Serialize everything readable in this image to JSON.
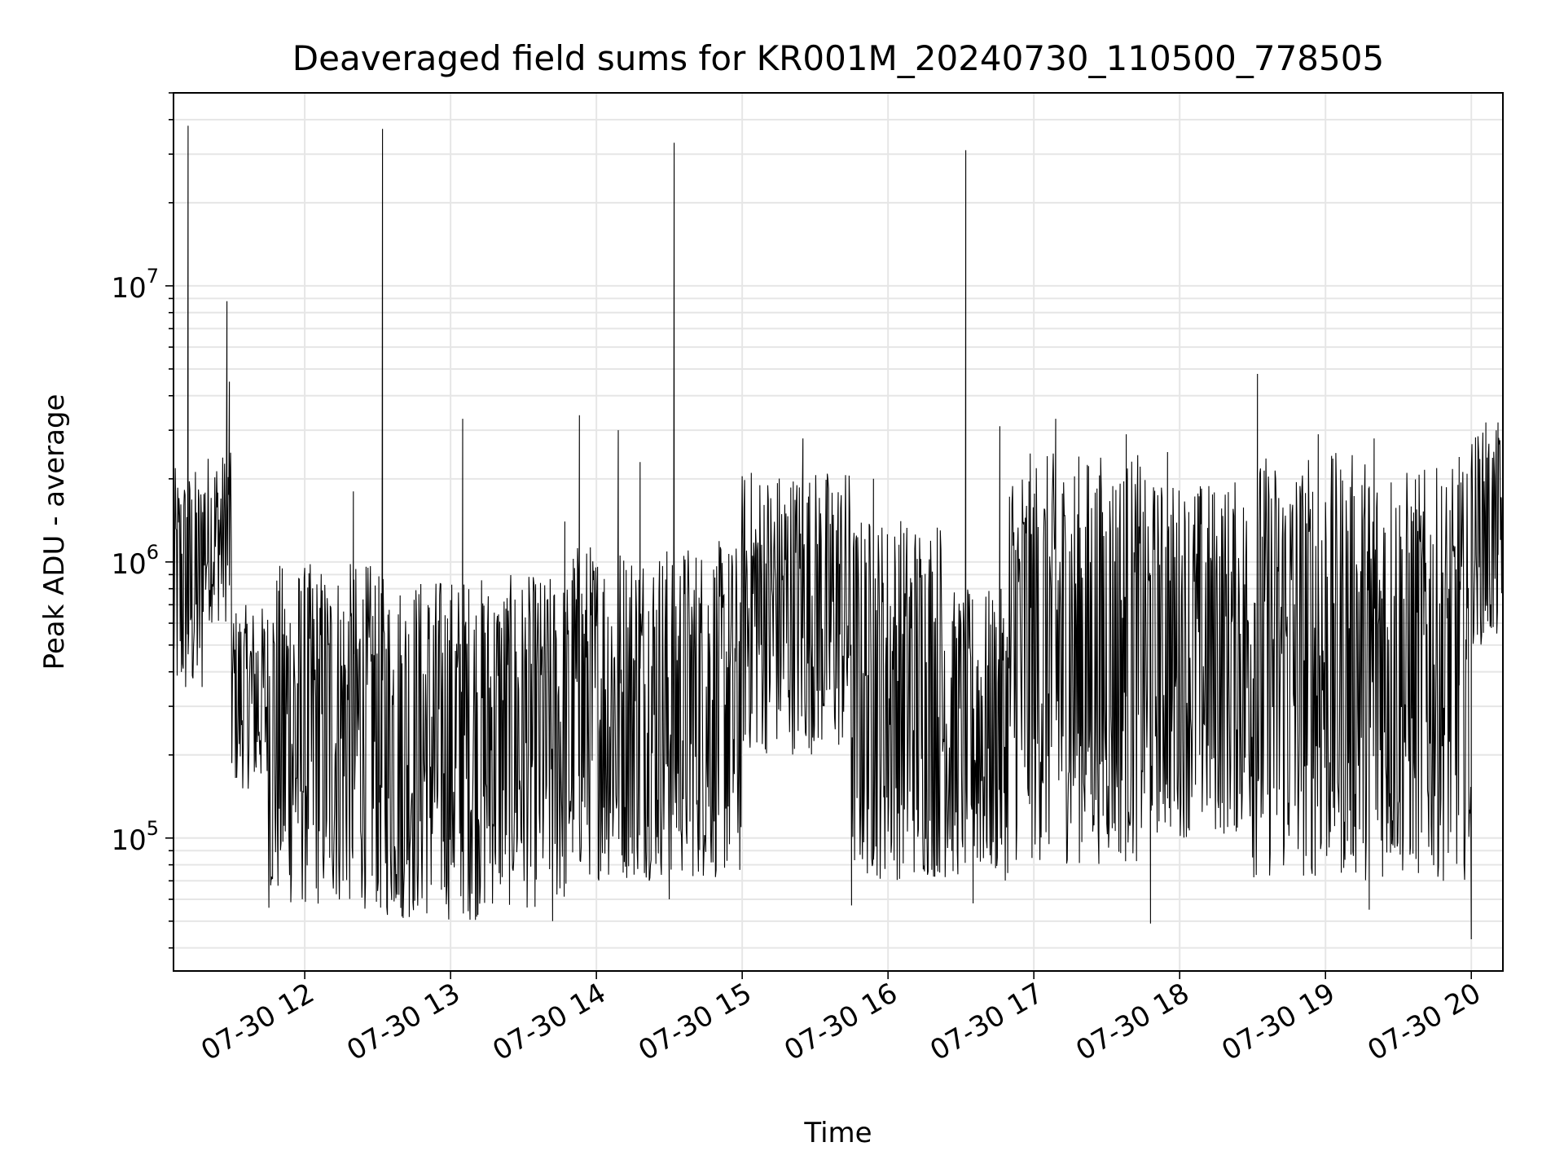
{
  "chart_data": {
    "type": "line",
    "title": "Deaveraged field sums for KR001M_20240730_110500_778505",
    "xlabel": "Time",
    "ylabel": "Peak ADU - average",
    "yscale": "log",
    "grid": true,
    "grid_minor": true,
    "xlim": [
      "2024-07-30 11:06",
      "2024-07-30 20:13"
    ],
    "ylim": [
      33000,
      50000000
    ],
    "x_ticks": [
      {
        "value": "2024-07-30 12:00",
        "label": "07-30 12"
      },
      {
        "value": "2024-07-30 13:00",
        "label": "07-30 13"
      },
      {
        "value": "2024-07-30 14:00",
        "label": "07-30 14"
      },
      {
        "value": "2024-07-30 15:00",
        "label": "07-30 15"
      },
      {
        "value": "2024-07-30 16:00",
        "label": "07-30 16"
      },
      {
        "value": "2024-07-30 17:00",
        "label": "07-30 17"
      },
      {
        "value": "2024-07-30 18:00",
        "label": "07-30 18"
      },
      {
        "value": "2024-07-30 19:00",
        "label": "07-30 19"
      },
      {
        "value": "2024-07-30 20:00",
        "label": "07-30 20"
      }
    ],
    "y_ticks": [
      {
        "value": 100000,
        "base": "10",
        "exp": "5"
      },
      {
        "value": 1000000,
        "base": "10",
        "exp": "6"
      },
      {
        "value": 10000000,
        "base": "10",
        "exp": "7"
      }
    ],
    "line_color": "#000000",
    "segments": [
      {
        "start": "2024-07-30 11:06",
        "end": "2024-07-30 11:18",
        "low": 300000,
        "high": 2200000
      },
      {
        "start": "2024-07-30 11:18",
        "end": "2024-07-30 11:30",
        "low": 600000,
        "high": 2500000
      },
      {
        "start": "2024-07-30 11:30",
        "end": "2024-07-30 11:45",
        "low": 150000,
        "high": 700000
      },
      {
        "start": "2024-07-30 11:45",
        "end": "2024-07-30 12:30",
        "low": 55000,
        "high": 1000000
      },
      {
        "start": "2024-07-30 12:30",
        "end": "2024-07-30 13:15",
        "low": 50000,
        "high": 900000
      },
      {
        "start": "2024-07-30 13:15",
        "end": "2024-07-30 13:50",
        "low": 55000,
        "high": 900000
      },
      {
        "start": "2024-07-30 13:50",
        "end": "2024-07-30 15:00",
        "low": 70000,
        "high": 1200000
      },
      {
        "start": "2024-07-30 15:00",
        "end": "2024-07-30 15:45",
        "low": 200000,
        "high": 2200000
      },
      {
        "start": "2024-07-30 15:45",
        "end": "2024-07-30 16:25",
        "low": 70000,
        "high": 1500000
      },
      {
        "start": "2024-07-30 16:25",
        "end": "2024-07-30 16:50",
        "low": 70000,
        "high": 800000
      },
      {
        "start": "2024-07-30 16:50",
        "end": "2024-07-30 17:45",
        "low": 80000,
        "high": 2500000
      },
      {
        "start": "2024-07-30 17:45",
        "end": "2024-07-30 18:30",
        "low": 100000,
        "high": 2000000
      },
      {
        "start": "2024-07-30 18:30",
        "end": "2024-07-30 19:30",
        "low": 70000,
        "high": 2500000
      },
      {
        "start": "2024-07-30 19:30",
        "end": "2024-07-30 20:00",
        "low": 70000,
        "high": 2200000
      },
      {
        "start": "2024-07-30 20:00",
        "end": "2024-07-30 20:13",
        "low": 500000,
        "high": 3000000
      }
    ],
    "spikes": [
      {
        "x": "2024-07-30 11:12",
        "y": 38000000
      },
      {
        "x": "2024-07-30 11:28",
        "y": 8800000
      },
      {
        "x": "2024-07-30 11:29",
        "y": 4500000
      },
      {
        "x": "2024-07-30 12:20",
        "y": 1800000
      },
      {
        "x": "2024-07-30 12:32",
        "y": 37000000
      },
      {
        "x": "2024-07-30 13:05",
        "y": 3300000
      },
      {
        "x": "2024-07-30 13:47",
        "y": 1400000
      },
      {
        "x": "2024-07-30 13:53",
        "y": 3400000
      },
      {
        "x": "2024-07-30 14:09",
        "y": 3000000
      },
      {
        "x": "2024-07-30 14:18",
        "y": 2300000
      },
      {
        "x": "2024-07-30 14:32",
        "y": 33000000
      },
      {
        "x": "2024-07-30 15:25",
        "y": 2800000
      },
      {
        "x": "2024-07-30 15:54",
        "y": 2000000
      },
      {
        "x": "2024-07-30 16:32",
        "y": 31000000
      },
      {
        "x": "2024-07-30 16:46",
        "y": 3100000
      },
      {
        "x": "2024-07-30 17:09",
        "y": 3300000
      },
      {
        "x": "2024-07-30 17:38",
        "y": 2900000
      },
      {
        "x": "2024-07-30 17:55",
        "y": 2500000
      },
      {
        "x": "2024-07-30 18:32",
        "y": 4800000
      },
      {
        "x": "2024-07-30 18:57",
        "y": 2900000
      },
      {
        "x": "2024-07-30 19:20",
        "y": 2800000
      },
      {
        "x": "2024-07-30 19:55",
        "y": 2400000
      },
      {
        "x": "2024-07-30 20:06",
        "y": 3200000
      },
      {
        "x": "2024-07-30 20:11",
        "y": 3200000
      }
    ],
    "dips": [
      {
        "x": "2024-07-30 11:40",
        "y": 180000
      },
      {
        "x": "2024-07-30 12:40",
        "y": 52000
      },
      {
        "x": "2024-07-30 13:42",
        "y": 50000
      },
      {
        "x": "2024-07-30 14:30",
        "y": 60000
      },
      {
        "x": "2024-07-30 15:45",
        "y": 57000
      },
      {
        "x": "2024-07-30 16:35",
        "y": 58000
      },
      {
        "x": "2024-07-30 17:48",
        "y": 49000
      },
      {
        "x": "2024-07-30 19:18",
        "y": 55000
      },
      {
        "x": "2024-07-30 20:00",
        "y": 43000
      }
    ]
  }
}
